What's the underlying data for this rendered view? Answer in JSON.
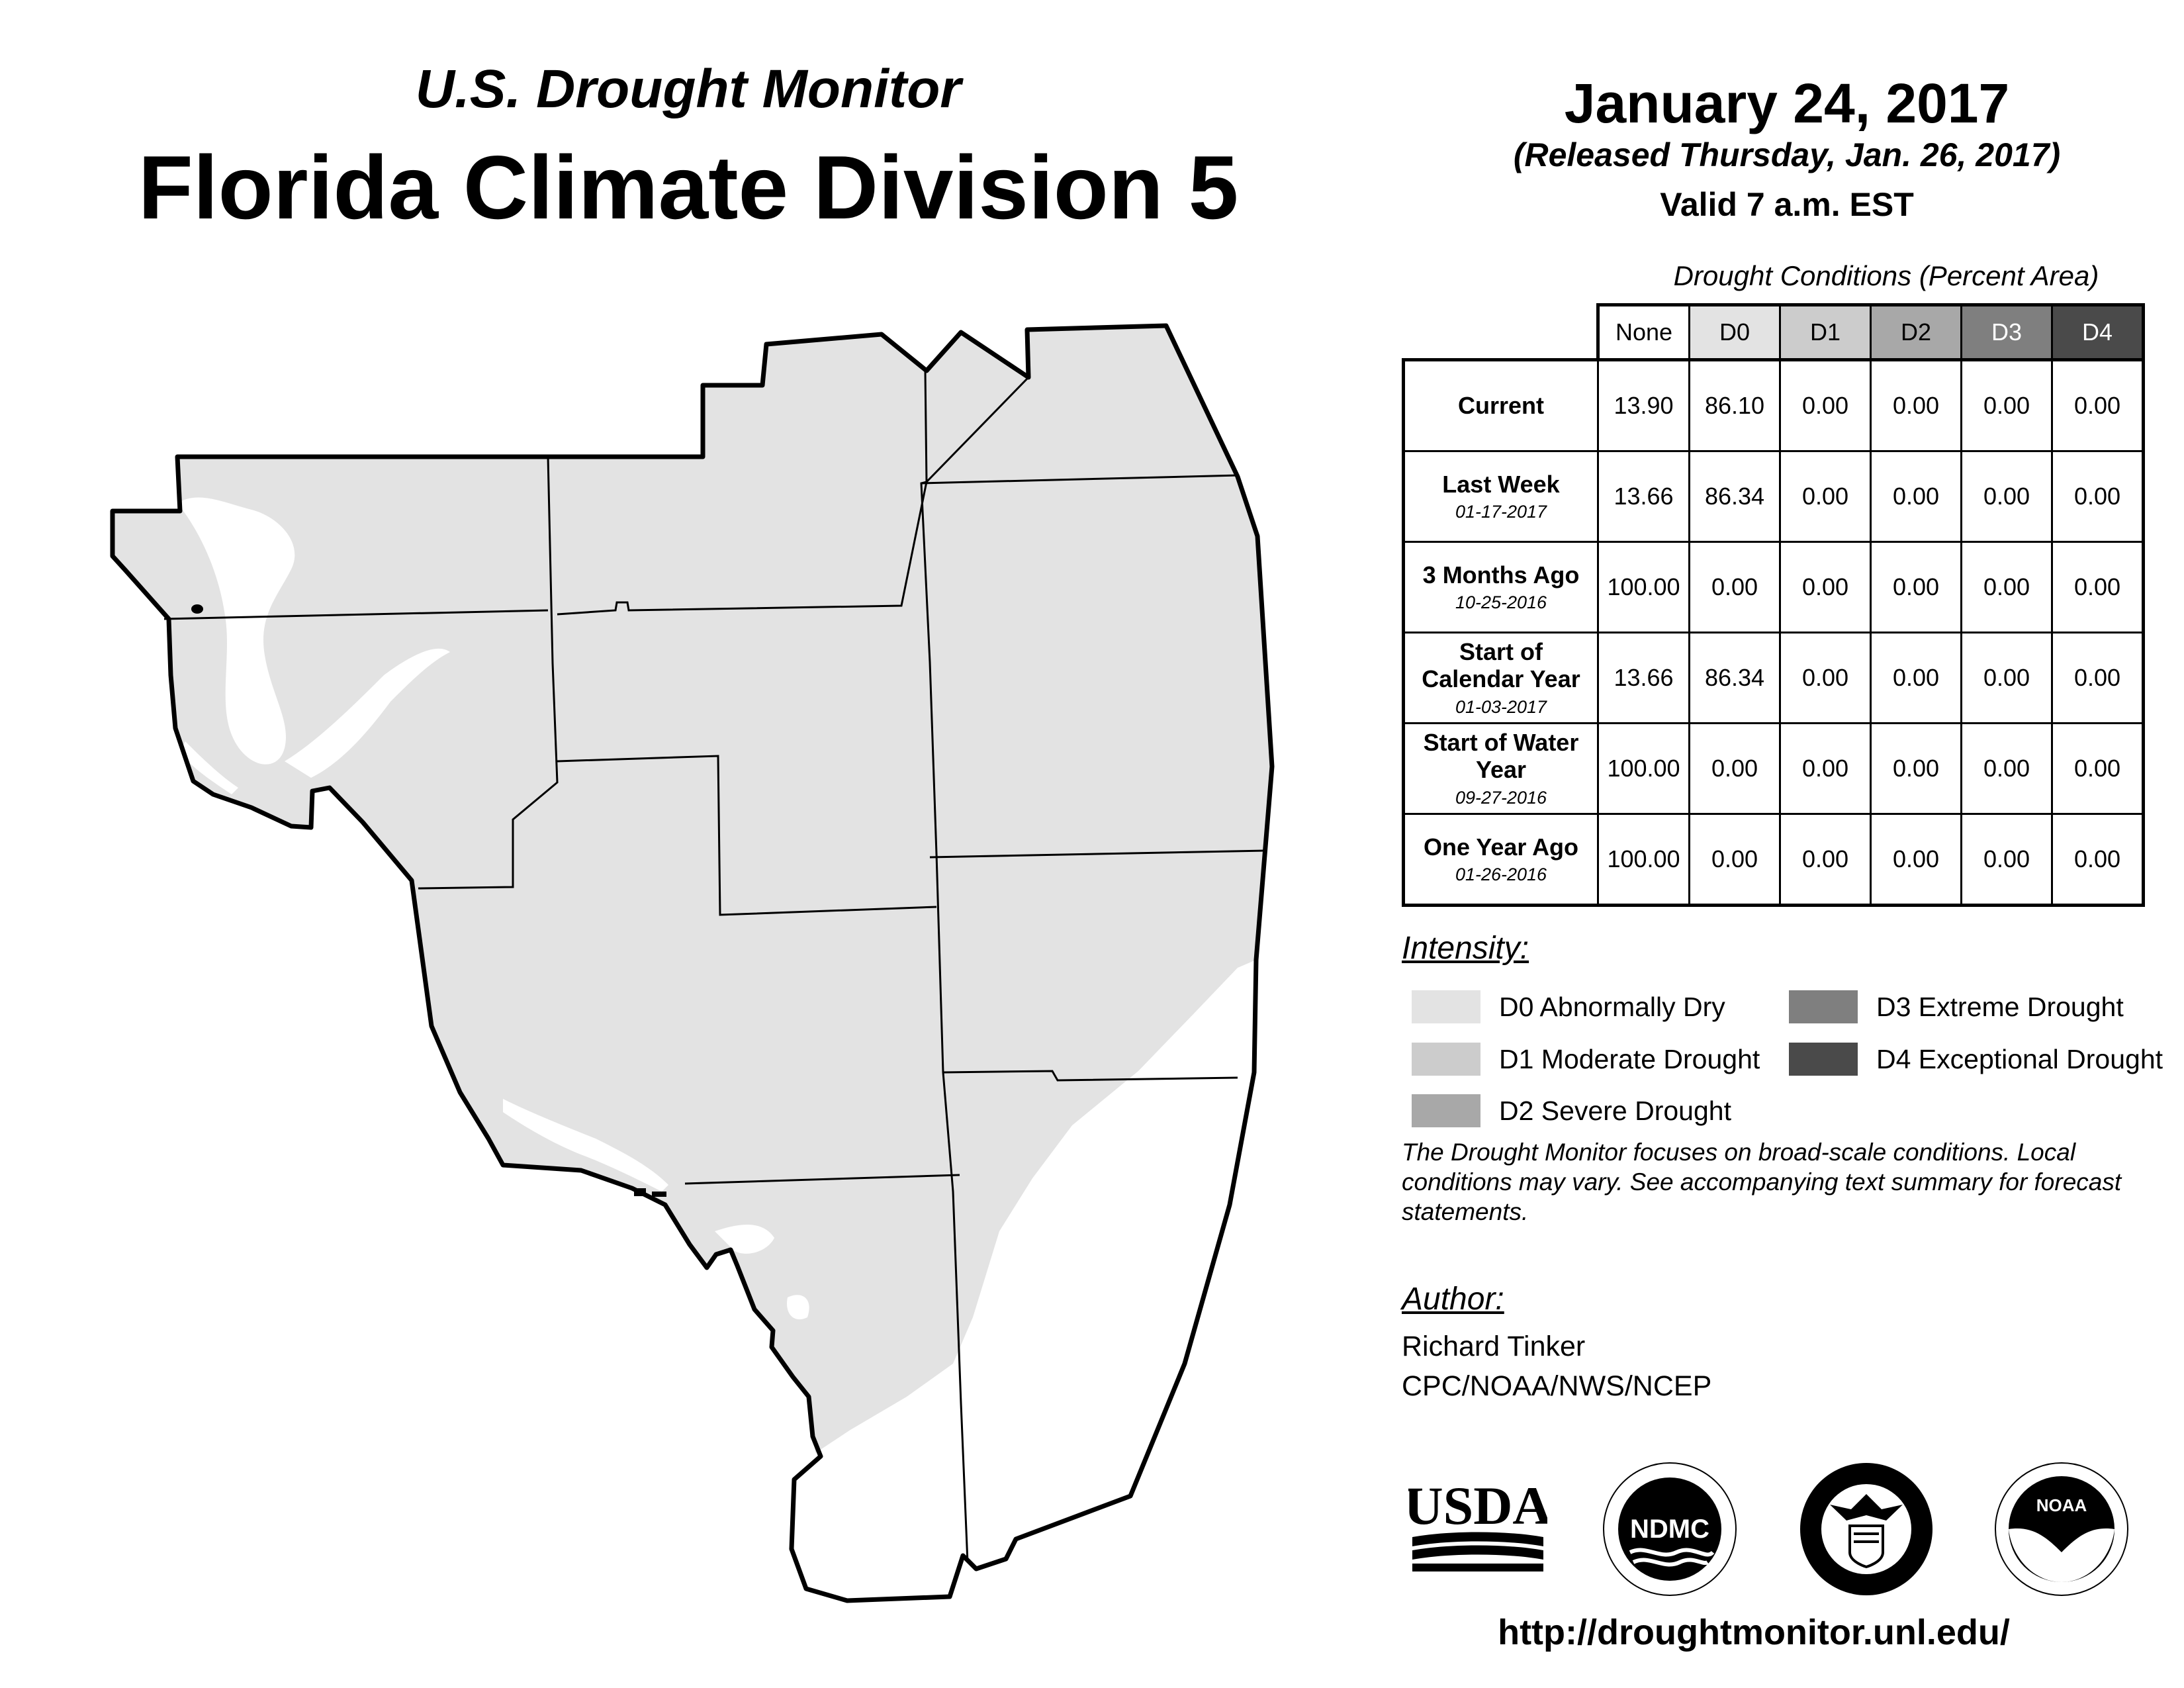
{
  "header": {
    "subtitle": "U.S. Drought Monitor",
    "title": "Florida Climate Division 5",
    "date": "January 24, 2017",
    "released": "(Released Thursday, Jan. 26, 2017)",
    "valid": "Valid 7 a.m. EST"
  },
  "table": {
    "caption": "Drought Conditions (Percent Area)",
    "columns": [
      "None",
      "D0",
      "D1",
      "D2",
      "D3",
      "D4"
    ],
    "column_colors": [
      "#ffffff",
      "#e3e3e3",
      "#cccccc",
      "#a8a8a8",
      "#7f7f7f",
      "#4a4a4a"
    ],
    "column_text_colors": [
      "#000000",
      "#000000",
      "#000000",
      "#000000",
      "#ffffff",
      "#ffffff"
    ],
    "rows": [
      {
        "label": "Current",
        "date": "",
        "values": [
          "13.90",
          "86.10",
          "0.00",
          "0.00",
          "0.00",
          "0.00"
        ]
      },
      {
        "label": "Last Week",
        "date": "01-17-2017",
        "values": [
          "13.66",
          "86.34",
          "0.00",
          "0.00",
          "0.00",
          "0.00"
        ]
      },
      {
        "label": "3 Months Ago",
        "date": "10-25-2016",
        "values": [
          "100.00",
          "0.00",
          "0.00",
          "0.00",
          "0.00",
          "0.00"
        ]
      },
      {
        "label": "Start of Calendar Year",
        "date": "01-03-2017",
        "values": [
          "13.66",
          "86.34",
          "0.00",
          "0.00",
          "0.00",
          "0.00"
        ]
      },
      {
        "label": "Start of Water Year",
        "date": "09-27-2016",
        "values": [
          "100.00",
          "0.00",
          "0.00",
          "0.00",
          "0.00",
          "0.00"
        ]
      },
      {
        "label": "One Year Ago",
        "date": "01-26-2016",
        "values": [
          "100.00",
          "0.00",
          "0.00",
          "0.00",
          "0.00",
          "0.00"
        ]
      }
    ]
  },
  "legend": {
    "title": "Intensity:",
    "items": [
      {
        "label": "D0 Abnormally Dry",
        "color": "#e3e3e3"
      },
      {
        "label": "D1 Moderate Drought",
        "color": "#cccccc"
      },
      {
        "label": "D2 Severe Drought",
        "color": "#a8a8a8"
      },
      {
        "label": "D3 Extreme Drought",
        "color": "#7f7f7f"
      },
      {
        "label": "D4 Exceptional Drought",
        "color": "#4a4a4a"
      }
    ]
  },
  "note": "The Drought Monitor focuses on broad-scale conditions. Local conditions may vary. See accompanying text summary for forecast statements.",
  "author": {
    "title": "Author:",
    "name": "Richard Tinker",
    "org": "CPC/NOAA/NWS/NCEP"
  },
  "logos": {
    "usda": "USDA",
    "ndmc": "NDMC",
    "noaa": "NOAA"
  },
  "map": {
    "d0_color": "#e3e3e3",
    "none_color": "#ffffff"
  },
  "url": "http://droughtmonitor.unl.edu/"
}
